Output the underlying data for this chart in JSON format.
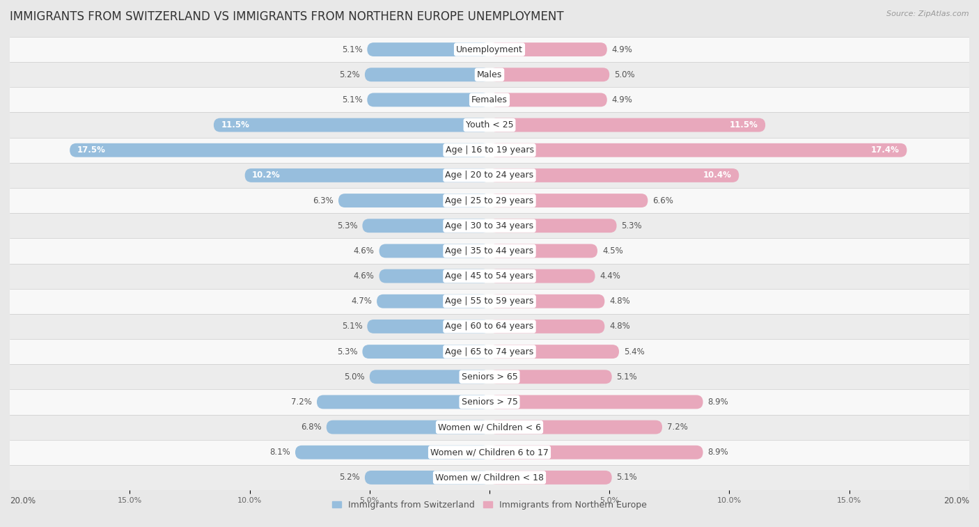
{
  "title": "IMMIGRANTS FROM SWITZERLAND VS IMMIGRANTS FROM NORTHERN EUROPE UNEMPLOYMENT",
  "source": "Source: ZipAtlas.com",
  "categories": [
    "Unemployment",
    "Males",
    "Females",
    "Youth < 25",
    "Age | 16 to 19 years",
    "Age | 20 to 24 years",
    "Age | 25 to 29 years",
    "Age | 30 to 34 years",
    "Age | 35 to 44 years",
    "Age | 45 to 54 years",
    "Age | 55 to 59 years",
    "Age | 60 to 64 years",
    "Age | 65 to 74 years",
    "Seniors > 65",
    "Seniors > 75",
    "Women w/ Children < 6",
    "Women w/ Children 6 to 17",
    "Women w/ Children < 18"
  ],
  "left_values": [
    5.1,
    5.2,
    5.1,
    11.5,
    17.5,
    10.2,
    6.3,
    5.3,
    4.6,
    4.6,
    4.7,
    5.1,
    5.3,
    5.0,
    7.2,
    6.8,
    8.1,
    5.2
  ],
  "right_values": [
    4.9,
    5.0,
    4.9,
    11.5,
    17.4,
    10.4,
    6.6,
    5.3,
    4.5,
    4.4,
    4.8,
    4.8,
    5.4,
    5.1,
    8.9,
    7.2,
    8.9,
    5.1
  ],
  "left_color": "#97bedd",
  "right_color": "#e8a8bc",
  "row_color_even": "#f5f5f5",
  "row_color_odd": "#e8e8e8",
  "background_color": "#e8e8e8",
  "axis_max": 20.0,
  "legend_left": "Immigrants from Switzerland",
  "legend_right": "Immigrants from Northern Europe",
  "title_fontsize": 12,
  "label_fontsize": 9,
  "value_fontsize": 8.5
}
